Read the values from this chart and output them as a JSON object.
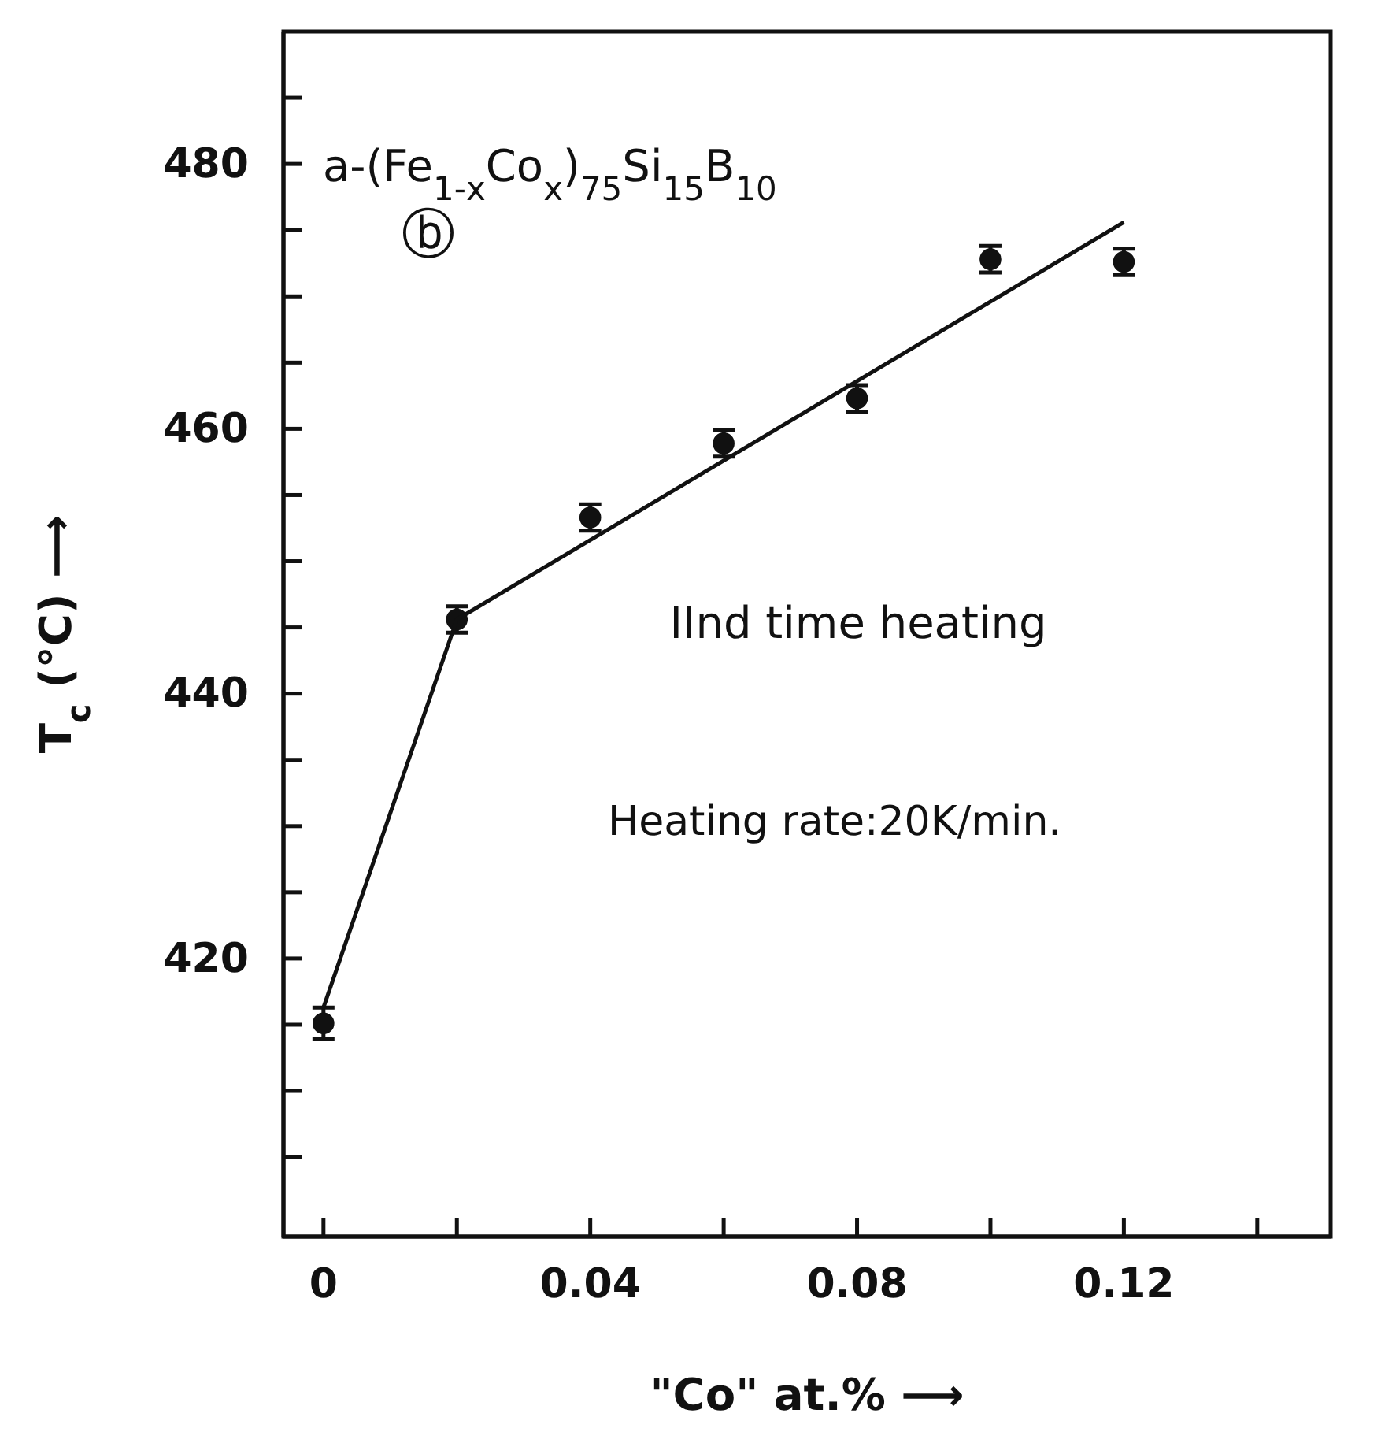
{
  "chart_data": {
    "type": "scatter",
    "xlabel": "\"Co\" at.% ⟶",
    "ylabel": "T$_{c}$ (°C) ⟶",
    "xlim": [
      -0.006,
      0.151
    ],
    "ylim": [
      399,
      490
    ],
    "xticks": [
      {
        "value": 0,
        "label": "0"
      },
      {
        "value": 0.02,
        "label": null
      },
      {
        "value": 0.04,
        "label": "0.04"
      },
      {
        "value": 0.06,
        "label": null
      },
      {
        "value": 0.08,
        "label": "0.08"
      },
      {
        "value": 0.1,
        "label": null
      },
      {
        "value": 0.12,
        "label": "0.12"
      },
      {
        "value": 0.14,
        "label": null
      }
    ],
    "yticks": [
      {
        "value": 405,
        "label": null
      },
      {
        "value": 410,
        "label": null
      },
      {
        "value": 415,
        "label": null
      },
      420,
      {
        "value": 425,
        "label": null
      },
      {
        "value": 430,
        "label": null
      },
      {
        "value": 435,
        "label": null
      },
      440,
      {
        "value": 445,
        "label": null
      },
      {
        "value": 450,
        "label": null
      },
      {
        "value": 455,
        "label": null
      },
      460,
      {
        "value": 465,
        "label": null
      },
      {
        "value": 470,
        "label": null
      },
      {
        "value": 475,
        "label": null
      },
      480,
      {
        "value": 485,
        "label": null
      }
    ],
    "marker": "circle",
    "series": [
      {
        "color": "#111111",
        "x": [
          0,
          0.02,
          0.04,
          0.06,
          0.08,
          0.1,
          0.12
        ],
        "values": [
          415.1,
          445.6,
          453.3,
          458.9,
          462.3,
          472.8,
          472.6
        ],
        "errors": [
          1.2,
          1,
          1,
          1,
          1,
          1,
          1
        ]
      },
      {
        "type": "line",
        "marker": "none",
        "color": "#111111",
        "x": [
          0,
          0.02,
          0.12
        ],
        "values": [
          416.3,
          445.6,
          475.6
        ]
      }
    ],
    "annotations": [
      "a-(Fe$_{1-x}$Co$_{x}$)$_{75}$Si$_{15}$B$_{10}$",
      "ⓑ",
      "IInd time heating",
      "Heating rate:20K/min."
    ]
  }
}
